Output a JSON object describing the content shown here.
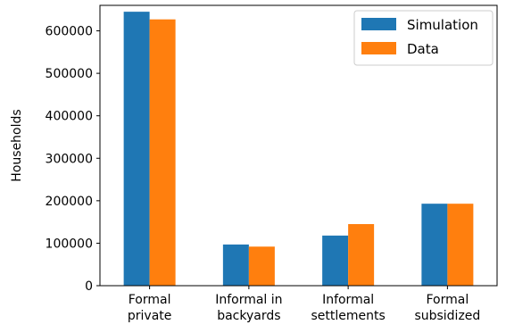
{
  "chart_data": {
    "type": "bar",
    "categories": [
      [
        "Formal",
        "private"
      ],
      [
        "Informal in",
        "backyards"
      ],
      [
        "Informal",
        "settlements"
      ],
      [
        "Formal",
        "subsidized"
      ]
    ],
    "series": [
      {
        "name": "Simulation",
        "color": "#1f77b4",
        "values": [
          645000,
          97000,
          118000,
          193000
        ]
      },
      {
        "name": "Data",
        "color": "#ff7f0e",
        "values": [
          627000,
          92000,
          145000,
          193000
        ]
      }
    ],
    "ylabel": "Households",
    "ylim": [
      0,
      660000
    ],
    "yticks": [
      0,
      100000,
      200000,
      300000,
      400000,
      500000,
      600000
    ],
    "ytick_labels": [
      "0",
      "100000",
      "200000",
      "300000",
      "400000",
      "500000",
      "600000"
    ],
    "legend": "top-right",
    "grid": false
  }
}
